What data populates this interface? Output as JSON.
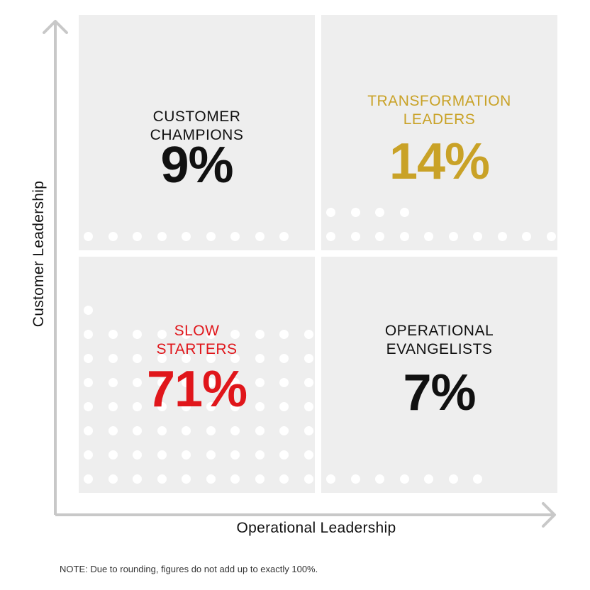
{
  "axes": {
    "y_label": "Customer Leadership",
    "x_label": "Operational Leadership"
  },
  "quadrants": [
    {
      "id": "tl",
      "label_line1": "CUSTOMER",
      "label_line2": "CHAMPIONS",
      "percent": "9%",
      "value": 9,
      "color": "#111111"
    },
    {
      "id": "tr",
      "label_line1": "TRANSFORMATION",
      "label_line2": "LEADERS",
      "percent": "14%",
      "value": 14,
      "color": "#c9a227"
    },
    {
      "id": "bl",
      "label_line1": "SLOW",
      "label_line2": "STARTERS",
      "percent": "71%",
      "value": 71,
      "color": "#e0161b"
    },
    {
      "id": "br",
      "label_line1": "OPERATIONAL",
      "label_line2": "EVANGELISTS",
      "percent": "7%",
      "value": 7,
      "color": "#111111"
    }
  ],
  "note": "NOTE: Due to rounding, figures do not add up to exactly 100%.",
  "colors": {
    "panel": "#eeeeee",
    "axis": "#c8c8c8"
  }
}
